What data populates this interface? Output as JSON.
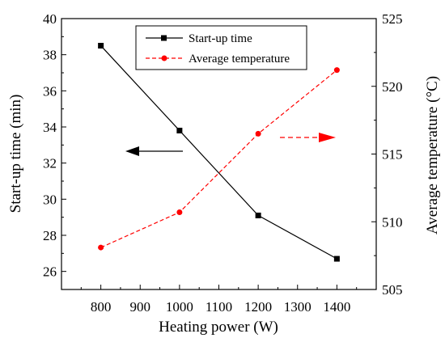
{
  "chart_data": {
    "type": "line",
    "x": [
      800,
      1000,
      1200,
      1400
    ],
    "xlabel": "Heating power (W)",
    "xlim": [
      700,
      1500
    ],
    "xticks": [
      800,
      900,
      1000,
      1100,
      1200,
      1300,
      1400
    ],
    "ylabel_left": "Start-up time (min)",
    "ylim_left": [
      25,
      40
    ],
    "yticks_left": [
      26,
      28,
      30,
      32,
      34,
      36,
      38,
      40
    ],
    "ylabel_right": "Average temperature (°C)",
    "ylim_right": [
      505,
      525
    ],
    "yticks_right": [
      505,
      510,
      515,
      520,
      525
    ],
    "legend_position": "top-center",
    "grid": false,
    "series": [
      {
        "name": "Start-up time",
        "axis": "left",
        "values": [
          38.5,
          33.8,
          29.1,
          26.7
        ],
        "color": "#000000",
        "line_style": "solid",
        "marker": "square"
      },
      {
        "name": "Average temperature",
        "axis": "right",
        "values": [
          508.1,
          510.7,
          516.5,
          521.2
        ],
        "color": "#ff0000",
        "line_style": "dashed",
        "marker": "circle"
      }
    ],
    "annotations": [
      {
        "type": "arrow",
        "direction": "left",
        "color": "#000000",
        "indicates_axis": "left"
      },
      {
        "type": "arrow",
        "direction": "right",
        "color": "#ff0000",
        "indicates_axis": "right"
      }
    ]
  }
}
